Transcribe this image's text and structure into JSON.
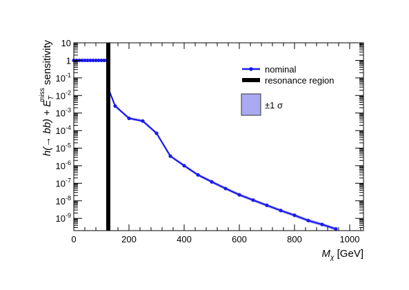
{
  "chart_data": {
    "type": "line",
    "xlabel_main": "M",
    "xlabel_sub": "χ",
    "xlabel_unit": " [GeV]",
    "ylabel_pre": "h(→ bb) + E",
    "ylabel_sub": "T",
    "ylabel_sup": "miss",
    "ylabel_post": " sensitivity",
    "xlim": [
      0,
      1050
    ],
    "ylim": [
      2e-10,
      10
    ],
    "yscale": "log",
    "xticks": [
      0,
      200,
      400,
      600,
      800,
      1000
    ],
    "xtick_labels": [
      "0",
      "200",
      "400",
      "600",
      "800",
      "1000"
    ],
    "yticks": [
      10,
      1,
      0.1,
      0.01,
      0.001,
      0.0001,
      1e-05,
      1e-06,
      1e-07,
      1e-08,
      1e-09
    ],
    "ytick_labels": [
      {
        "base": "10",
        "exp": ""
      },
      {
        "base": "1",
        "exp": ""
      },
      {
        "base": "10",
        "exp": "-1"
      },
      {
        "base": "10",
        "exp": "-2"
      },
      {
        "base": "10",
        "exp": "-3"
      },
      {
        "base": "10",
        "exp": "-4"
      },
      {
        "base": "10",
        "exp": "-5"
      },
      {
        "base": "10",
        "exp": "-6"
      },
      {
        "base": "10",
        "exp": "-7"
      },
      {
        "base": "10",
        "exp": "-8"
      },
      {
        "base": "10",
        "exp": "-9"
      }
    ],
    "resonance_x": 125,
    "series": [
      {
        "name": "nominal",
        "color": "#1a1aee",
        "band_color": "#9999ee",
        "x": [
          0,
          10,
          20,
          30,
          40,
          50,
          60,
          70,
          80,
          90,
          100,
          110,
          120,
          125,
          150,
          200,
          250,
          300,
          350,
          400,
          450,
          500,
          550,
          600,
          650,
          700,
          750,
          800,
          850,
          900,
          950
        ],
        "y": [
          1,
          1,
          1,
          1,
          1,
          1,
          1,
          1,
          1,
          1,
          1,
          1,
          1,
          0.025,
          0.0025,
          0.0005,
          0.00035,
          7e-05,
          3.5e-06,
          1e-06,
          3e-07,
          1.2e-07,
          5e-08,
          2.2e-08,
          1.1e-08,
          5.5e-09,
          2.8e-09,
          1.5e-09,
          7.5e-10,
          4.5e-10,
          2.5e-10
        ],
        "band_lo": [
          1,
          1,
          1,
          1,
          1,
          1,
          1,
          1,
          1,
          1,
          1,
          1,
          1,
          0.021,
          0.0021,
          0.00042,
          0.0003,
          6e-05,
          3e-06,
          8.5e-07,
          2.5e-07,
          1e-07,
          4.2e-08,
          1.8e-08,
          9e-09,
          4.5e-09,
          2.3e-09,
          1.2e-09,
          6e-10,
          3.6e-10,
          2e-10
        ],
        "band_hi": [
          1,
          1,
          1,
          1,
          1,
          1,
          1,
          1,
          1,
          1,
          1,
          1,
          1,
          0.03,
          0.003,
          0.0006,
          0.00042,
          8.5e-05,
          4.2e-06,
          1.2e-06,
          3.6e-07,
          1.5e-07,
          6e-08,
          2.7e-08,
          1.3e-08,
          6.7e-09,
          3.4e-09,
          1.8e-09,
          9.2e-10,
          5.5e-10,
          3e-10
        ]
      }
    ],
    "legend": {
      "entries": [
        "nominal",
        "resonance region",
        "±1 σ"
      ],
      "placement": "top-right"
    }
  }
}
